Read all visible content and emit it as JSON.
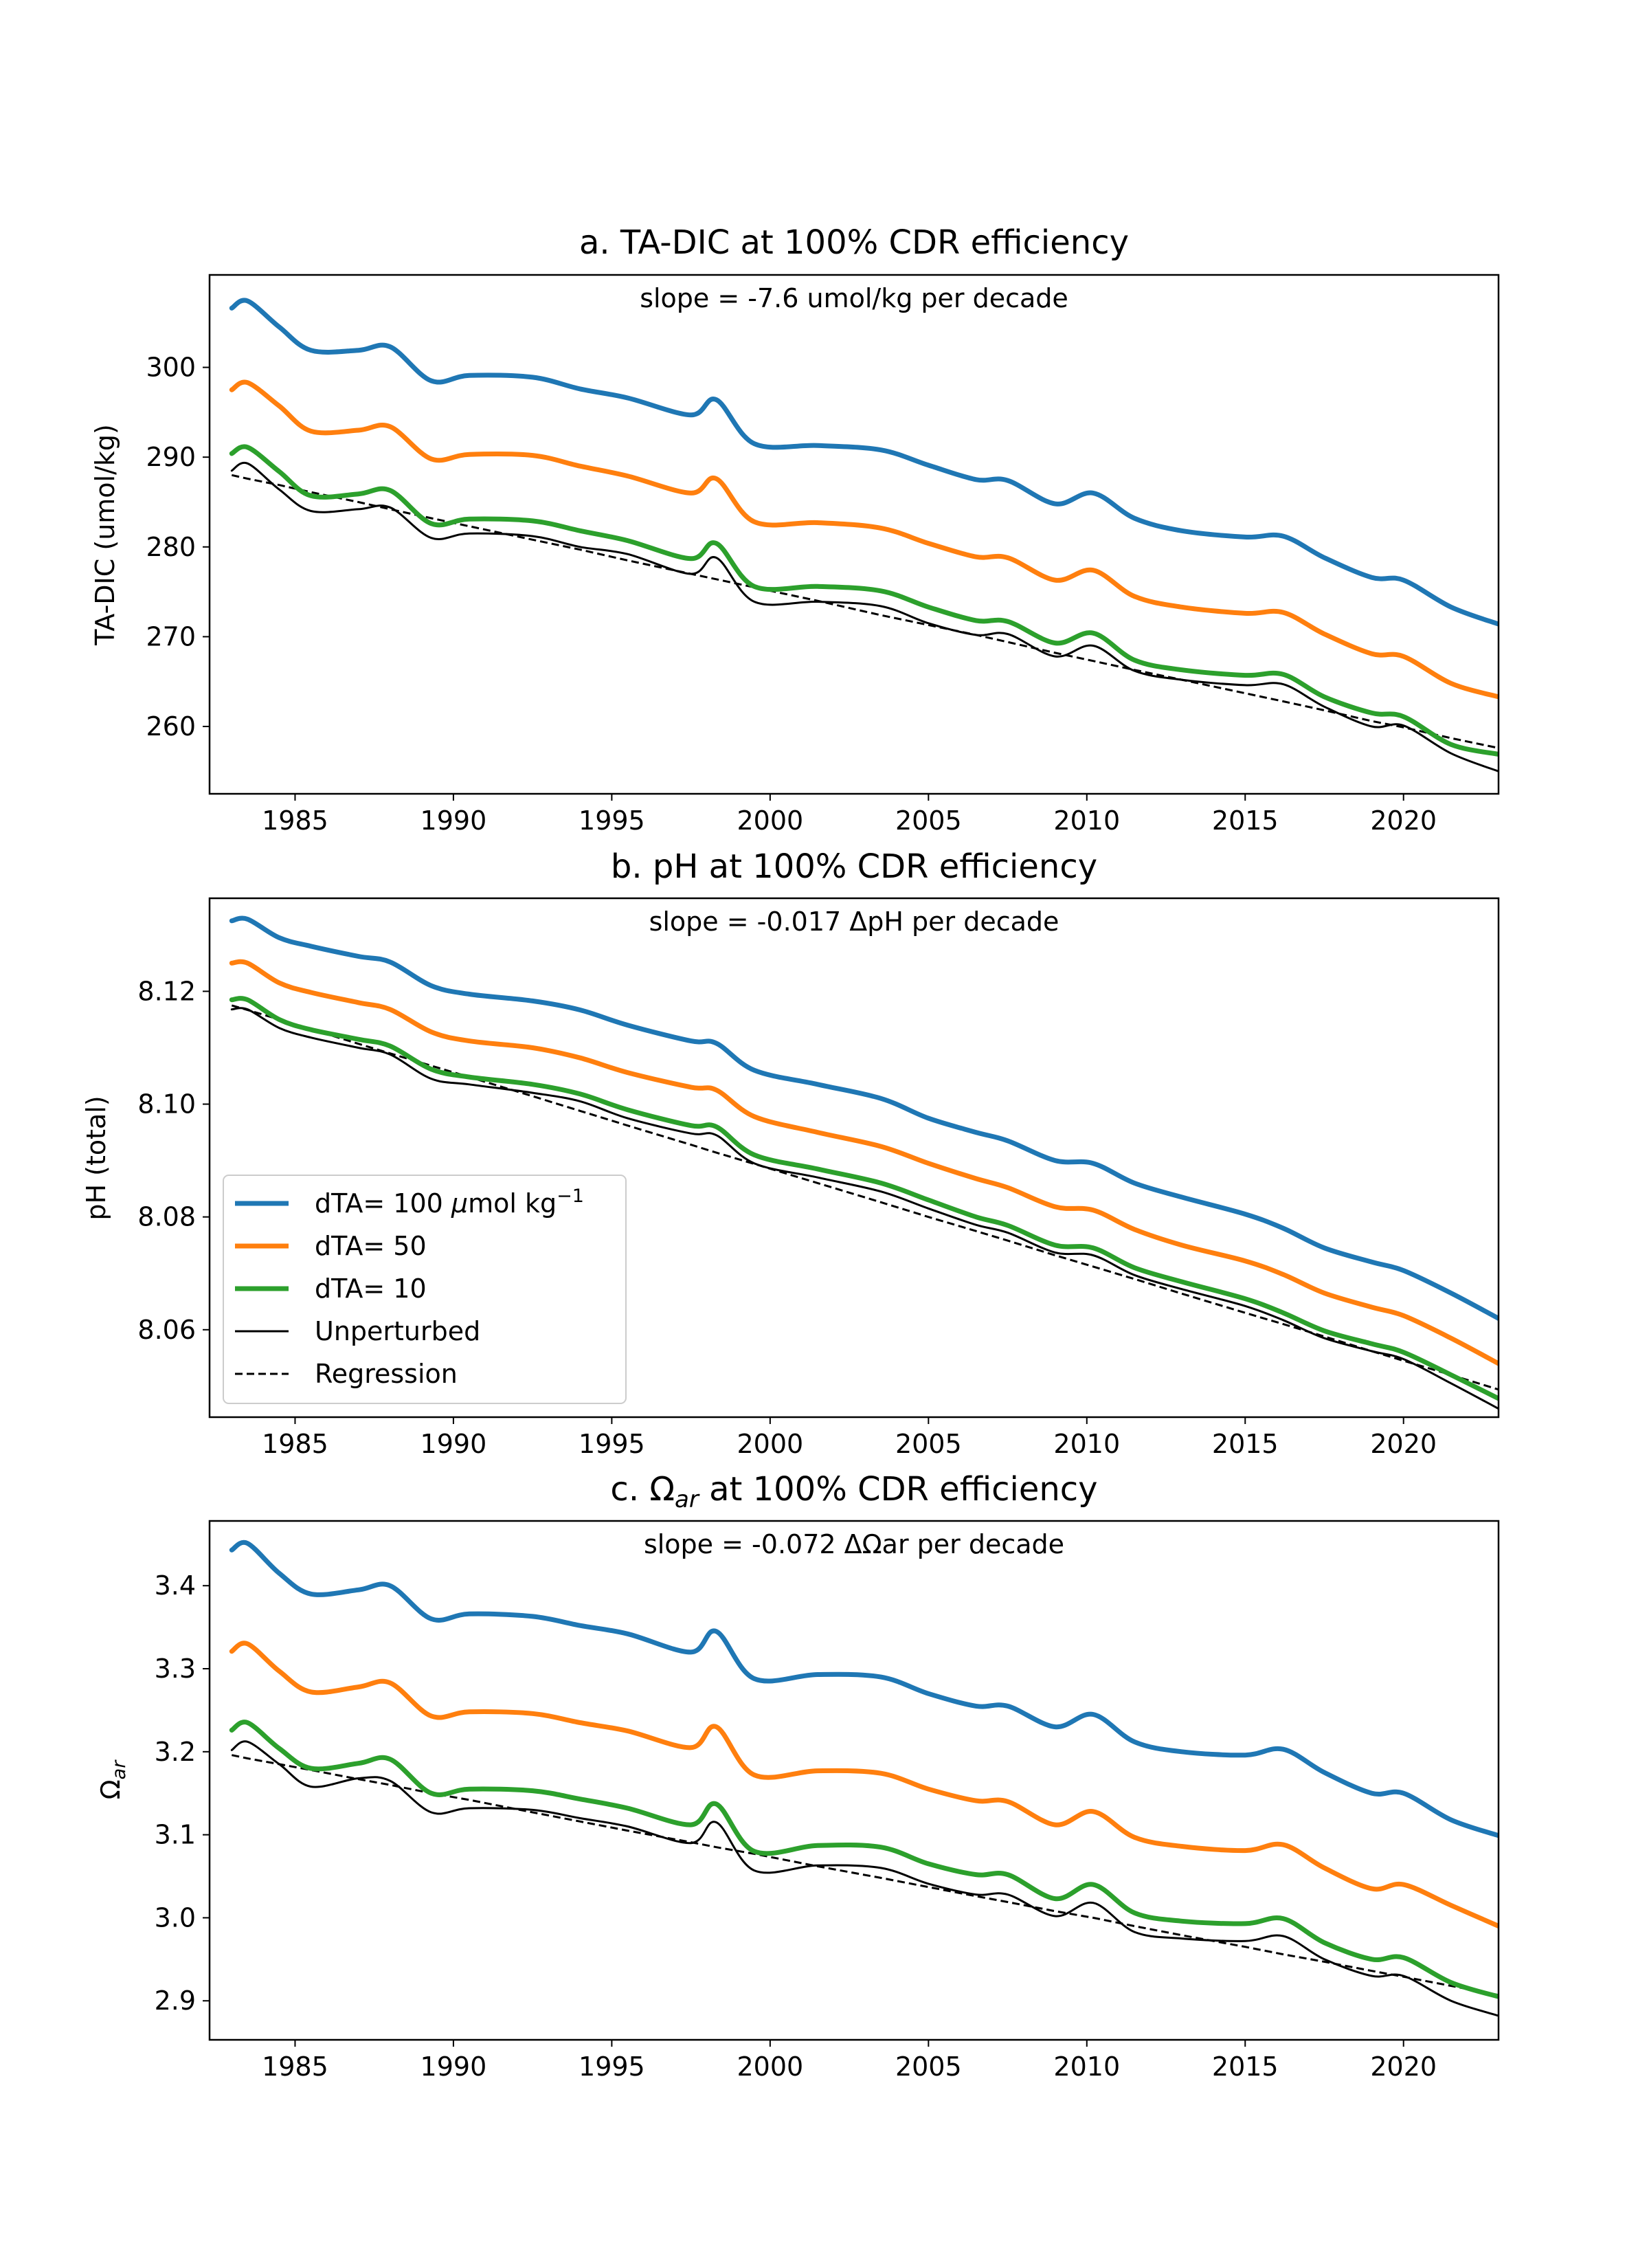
{
  "colors": {
    "dTA100": "#1f77b4",
    "dTA50": "#ff7f0e",
    "dTA10": "#2ca02c",
    "unperturbed": "#000000",
    "regression": "#000000"
  },
  "legend": {
    "location": "lower-left of panel b",
    "entries": [
      {
        "key": "dTA100",
        "label": "dTA= 100 ",
        "label_math": "μ",
        "label_tail": "mol kg",
        "label_sup": "−1",
        "style": "solid-thick"
      },
      {
        "key": "dTA50",
        "label": "dTA= 50",
        "style": "solid-thick"
      },
      {
        "key": "dTA10",
        "label": "dTA= 10",
        "style": "solid-thick"
      },
      {
        "key": "unperturbed",
        "label": "Unperturbed",
        "style": "solid-thin"
      },
      {
        "key": "regression",
        "label": "Regression",
        "style": "dashed"
      }
    ]
  },
  "chart_data": [
    {
      "type": "line",
      "title": "a. TA-DIC at 100% CDR efficiency",
      "annotation": "slope = -7.6 umol/kg per decade",
      "xlabel": "",
      "ylabel": "TA-DIC (umol/kg)",
      "xlim": [
        1982.3,
        2023.0
      ],
      "ylim": [
        252.5,
        310.3
      ],
      "xticks": [
        1985,
        1990,
        1995,
        2000,
        2005,
        2010,
        2015,
        2020
      ],
      "yticks": [
        260,
        270,
        280,
        290,
        300
      ],
      "x": [
        1983.0,
        1983.5,
        1984.5,
        1985.5,
        1987.0,
        1988.0,
        1989.3,
        1990.5,
        1992.5,
        1994.0,
        1995.5,
        1997.5,
        1998.3,
        1999.5,
        2001.5,
        2003.5,
        2005.0,
        2006.5,
        2007.5,
        2009.0,
        2010.2,
        2011.5,
        2013.0,
        2015.0,
        2016.2,
        2017.5,
        2019.0,
        2020.0,
        2021.5,
        2023.0
      ],
      "series": [
        {
          "key": "dTA100",
          "name": "dTA= 100 μmol kg⁻¹",
          "values": [
            306.6,
            307.4,
            304.5,
            301.9,
            301.9,
            302.3,
            298.5,
            299.1,
            298.9,
            297.6,
            296.6,
            294.7,
            296.4,
            291.5,
            291.3,
            290.8,
            289.1,
            287.5,
            287.4,
            284.8,
            286.0,
            283.2,
            281.8,
            281.1,
            281.2,
            278.8,
            276.6,
            276.3,
            273.3,
            271.4
          ]
        },
        {
          "key": "dTA50",
          "name": "dTA= 50",
          "values": [
            297.5,
            298.3,
            295.7,
            292.9,
            293.0,
            293.4,
            289.8,
            290.3,
            290.2,
            289.0,
            287.9,
            286.0,
            287.6,
            282.8,
            282.7,
            282.1,
            280.4,
            278.9,
            278.8,
            276.3,
            277.4,
            274.5,
            273.3,
            272.6,
            272.7,
            270.3,
            268.1,
            267.8,
            264.8,
            263.3
          ]
        },
        {
          "key": "dTA10",
          "name": "dTA= 10",
          "values": [
            290.4,
            291.1,
            288.4,
            285.7,
            285.9,
            286.3,
            282.6,
            283.1,
            282.9,
            281.8,
            280.7,
            278.7,
            280.4,
            275.6,
            275.6,
            275.1,
            273.3,
            271.8,
            271.7,
            269.3,
            270.4,
            267.4,
            266.3,
            265.7,
            265.8,
            263.3,
            261.5,
            261.1,
            258.0,
            256.9
          ]
        },
        {
          "key": "unperturbed",
          "name": "Unperturbed",
          "values": [
            288.5,
            289.3,
            286.4,
            284.0,
            284.2,
            284.4,
            281.0,
            281.5,
            281.2,
            280.0,
            279.2,
            277.0,
            278.8,
            273.9,
            273.9,
            273.4,
            271.5,
            270.2,
            270.3,
            267.8,
            269.0,
            266.2,
            265.2,
            264.6,
            264.7,
            262.2,
            260.0,
            260.1,
            257.0,
            255.0
          ]
        },
        {
          "key": "regression",
          "name": "Regression",
          "values": [
            288.0,
            287.6,
            286.9,
            286.1,
            285.0,
            284.2,
            283.2,
            282.3,
            280.8,
            279.7,
            278.5,
            277.0,
            276.4,
            275.5,
            274.0,
            272.4,
            271.3,
            270.2,
            269.4,
            268.2,
            267.3,
            266.3,
            265.2,
            263.7,
            262.8,
            261.8,
            260.6,
            259.9,
            258.7,
            257.6
          ]
        }
      ]
    },
    {
      "type": "line",
      "title": "b. pH at 100% CDR efficiency",
      "annotation": "slope = -0.017 ΔpH per decade",
      "xlabel": "",
      "ylabel": "pH (total)",
      "xlim": [
        1982.3,
        2023.0
      ],
      "ylim": [
        8.0445,
        8.1365
      ],
      "xticks": [
        1985,
        1990,
        1995,
        2000,
        2005,
        2010,
        2015,
        2020
      ],
      "yticks": [
        8.06,
        8.08,
        8.1,
        8.12
      ],
      "x": [
        1983.0,
        1983.5,
        1984.5,
        1985.5,
        1987.0,
        1988.0,
        1989.3,
        1990.5,
        1992.5,
        1994.0,
        1995.5,
        1997.5,
        1998.3,
        1999.5,
        2001.5,
        2003.5,
        2005.0,
        2006.5,
        2007.5,
        2009.0,
        2010.2,
        2011.5,
        2013.0,
        2015.0,
        2016.2,
        2017.5,
        2019.0,
        2020.0,
        2021.5,
        2023.0
      ],
      "series": [
        {
          "key": "dTA100",
          "name": "dTA= 100 μmol kg⁻¹",
          "values": [
            8.1325,
            8.1328,
            8.1295,
            8.128,
            8.1262,
            8.1252,
            8.121,
            8.1195,
            8.1183,
            8.1167,
            8.114,
            8.1112,
            8.1108,
            8.106,
            8.1035,
            8.101,
            8.0975,
            8.095,
            8.0935,
            8.09,
            8.0895,
            8.086,
            8.0835,
            8.0805,
            8.078,
            8.0745,
            8.072,
            8.0705,
            8.0665,
            8.062
          ]
        },
        {
          "key": "dTA50",
          "name": "dTA= 50",
          "values": [
            8.125,
            8.125,
            8.1215,
            8.1198,
            8.118,
            8.1168,
            8.1128,
            8.1112,
            8.11,
            8.1082,
            8.1056,
            8.103,
            8.1025,
            8.0978,
            8.095,
            8.0925,
            8.0895,
            8.0868,
            8.0852,
            8.0818,
            8.0812,
            8.0778,
            8.075,
            8.0722,
            8.0698,
            8.0665,
            8.064,
            8.0625,
            8.0585,
            8.054
          ]
        },
        {
          "key": "dTA10",
          "name": "dTA= 10",
          "values": [
            8.1185,
            8.1185,
            8.115,
            8.1132,
            8.1115,
            8.1103,
            8.1062,
            8.1048,
            8.1035,
            8.1018,
            8.099,
            8.0962,
            8.096,
            8.091,
            8.0885,
            8.086,
            8.083,
            8.08,
            8.0785,
            8.075,
            8.0745,
            8.071,
            8.0685,
            8.0655,
            8.063,
            8.0598,
            8.0575,
            8.056,
            8.052,
            8.0478
          ]
        },
        {
          "key": "unperturbed",
          "name": "Unperturbed",
          "values": [
            8.1168,
            8.1168,
            8.1135,
            8.1118,
            8.11,
            8.1088,
            8.1045,
            8.1035,
            8.102,
            8.1005,
            8.0975,
            8.0948,
            8.0945,
            8.0895,
            8.087,
            8.0845,
            8.0815,
            8.0786,
            8.0772,
            8.0737,
            8.0732,
            8.0697,
            8.0672,
            8.0642,
            8.0617,
            8.0585,
            8.0562,
            8.0548,
            8.0505,
            8.046
          ]
        },
        {
          "key": "regression",
          "name": "Regression",
          "values": [
            8.1175,
            8.1167,
            8.115,
            8.1133,
            8.1107,
            8.109,
            8.1068,
            8.1048,
            8.1014,
            8.0988,
            8.0962,
            8.0928,
            8.0914,
            8.0894,
            8.086,
            8.0826,
            8.08,
            8.0775,
            8.0758,
            8.0732,
            8.0712,
            8.069,
            8.0664,
            8.063,
            8.061,
            8.0588,
            8.0562,
            8.0545,
            8.052,
            8.0494
          ]
        }
      ]
    },
    {
      "type": "line",
      "title_prefix": "c. Ω",
      "title_sub": "ar",
      "title_suffix": " at 100% CDR efficiency",
      "annotation": "slope = -0.072 ΔΩar per decade",
      "xlabel": "",
      "ylabel": "Ω",
      "ylabel_sub": "ar",
      "xlim": [
        1982.3,
        2023.0
      ],
      "ylim": [
        2.853,
        3.478
      ],
      "xticks": [
        1985,
        1990,
        1995,
        2000,
        2005,
        2010,
        2015,
        2020
      ],
      "yticks": [
        2.9,
        3.0,
        3.1,
        3.2,
        3.3,
        3.4
      ],
      "x": [
        1983.0,
        1983.5,
        1984.5,
        1985.5,
        1987.0,
        1988.0,
        1989.3,
        1990.5,
        1992.5,
        1994.0,
        1995.5,
        1997.5,
        1998.3,
        1999.5,
        2001.5,
        2003.5,
        2005.0,
        2006.5,
        2007.5,
        2009.0,
        2010.2,
        2011.5,
        2013.0,
        2015.0,
        2016.2,
        2017.5,
        2019.0,
        2020.0,
        2021.5,
        2023.0
      ],
      "series": [
        {
          "key": "dTA100",
          "name": "dTA= 100 μmol kg⁻¹",
          "values": [
            3.443,
            3.451,
            3.415,
            3.39,
            3.395,
            3.4,
            3.36,
            3.366,
            3.363,
            3.352,
            3.342,
            3.32,
            3.345,
            3.288,
            3.293,
            3.29,
            3.27,
            3.255,
            3.255,
            3.23,
            3.245,
            3.212,
            3.2,
            3.196,
            3.203,
            3.175,
            3.15,
            3.15,
            3.118,
            3.099
          ]
        },
        {
          "key": "dTA50",
          "name": "dTA= 50",
          "values": [
            3.321,
            3.33,
            3.297,
            3.272,
            3.278,
            3.283,
            3.243,
            3.248,
            3.246,
            3.235,
            3.225,
            3.205,
            3.23,
            3.172,
            3.177,
            3.174,
            3.155,
            3.141,
            3.14,
            3.112,
            3.128,
            3.097,
            3.086,
            3.081,
            3.088,
            3.06,
            3.035,
            3.04,
            3.015,
            2.99
          ]
        },
        {
          "key": "dTA10",
          "name": "dTA= 10",
          "values": [
            3.226,
            3.235,
            3.204,
            3.18,
            3.186,
            3.191,
            3.15,
            3.155,
            3.153,
            3.143,
            3.132,
            3.112,
            3.137,
            3.08,
            3.087,
            3.085,
            3.065,
            3.052,
            3.052,
            3.023,
            3.04,
            3.006,
            2.996,
            2.993,
            2.999,
            2.97,
            2.95,
            2.952,
            2.922,
            2.905
          ]
        },
        {
          "key": "unperturbed",
          "name": "Unperturbed",
          "values": [
            3.202,
            3.212,
            3.185,
            3.158,
            3.168,
            3.165,
            3.127,
            3.132,
            3.13,
            3.12,
            3.11,
            3.09,
            3.115,
            3.057,
            3.063,
            3.06,
            3.041,
            3.028,
            3.028,
            3.002,
            3.018,
            2.983,
            2.975,
            2.972,
            2.978,
            2.95,
            2.93,
            2.93,
            2.9,
            2.882
          ]
        },
        {
          "key": "regression",
          "name": "Regression",
          "values": [
            3.196,
            3.192,
            3.185,
            3.178,
            3.167,
            3.16,
            3.15,
            3.142,
            3.127,
            3.116,
            3.105,
            3.091,
            3.085,
            3.077,
            3.062,
            3.048,
            3.037,
            3.026,
            3.019,
            3.008,
            3.0,
            2.99,
            2.979,
            2.965,
            2.956,
            2.947,
            2.936,
            2.929,
            2.918,
            2.907
          ]
        }
      ]
    }
  ]
}
